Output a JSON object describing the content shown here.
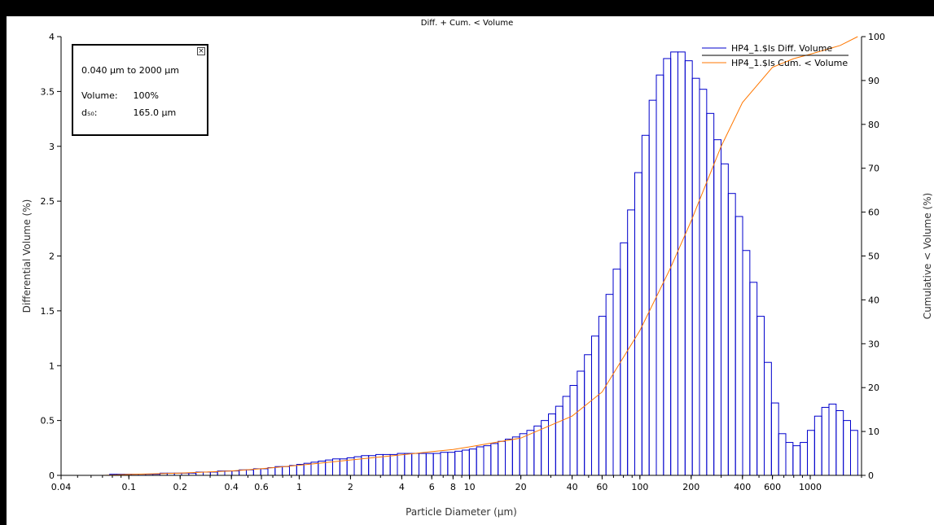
{
  "chart_data": {
    "type": "bar",
    "title": "Diff. + Cum. < Volume",
    "xlabel": "Particle Diameter (µm)",
    "ylabel": "Differential Volume (%)",
    "y2label": "Cumulative < Volume (%)",
    "xscale": "log",
    "xlim": [
      0.04,
      2000
    ],
    "ylim": [
      0,
      4
    ],
    "y2lim": [
      0,
      100
    ],
    "x_ticks": [
      "0.04",
      "0.1",
      "0.2",
      "0.4",
      "0.6",
      "1",
      "2",
      "4",
      "6",
      "8",
      "10",
      "20",
      "40",
      "60",
      "100",
      "200",
      "400",
      "600",
      "1000"
    ],
    "x_tick_values": [
      0.04,
      0.1,
      0.2,
      0.4,
      0.6,
      1,
      2,
      4,
      6,
      8,
      10,
      20,
      40,
      60,
      100,
      200,
      400,
      600,
      1000
    ],
    "y_ticks": [
      "0",
      "0.5",
      "1",
      "1.5",
      "2",
      "2.5",
      "3",
      "3.5",
      "4"
    ],
    "y2_ticks": [
      "0",
      "10",
      "20",
      "30",
      "40",
      "50",
      "60",
      "70",
      "80",
      "90",
      "100"
    ],
    "legend_position": "top-right",
    "series": [
      {
        "name": "HP4_1.$ls Diff. Volume",
        "color": "#0000cc",
        "kind": "bar",
        "values": [
          0,
          0.01,
          0.01,
          0.01,
          0.01,
          0.01,
          0.01,
          0.01,
          0.02,
          0.02,
          0.02,
          0.02,
          0.02,
          0.03,
          0.03,
          0.03,
          0.04,
          0.04,
          0.04,
          0.05,
          0.05,
          0.06,
          0.06,
          0.07,
          0.08,
          0.08,
          0.09,
          0.1,
          0.11,
          0.12,
          0.13,
          0.14,
          0.15,
          0.15,
          0.16,
          0.17,
          0.18,
          0.18,
          0.19,
          0.19,
          0.19,
          0.2,
          0.2,
          0.2,
          0.2,
          0.2,
          0.2,
          0.21,
          0.21,
          0.22,
          0.23,
          0.24,
          0.26,
          0.27,
          0.29,
          0.31,
          0.33,
          0.35,
          0.38,
          0.41,
          0.45,
          0.5,
          0.56,
          0.63,
          0.72,
          0.82,
          0.95,
          1.1,
          1.27,
          1.45,
          1.65,
          1.88,
          2.12,
          2.42,
          2.76,
          3.1,
          3.42,
          3.65,
          3.8,
          3.86,
          3.86,
          3.78,
          3.62,
          3.52,
          3.3,
          3.06,
          2.84,
          2.57,
          2.36,
          2.05,
          1.76,
          1.45,
          1.03,
          0.66,
          0.38,
          0.3,
          0.27,
          0.3,
          0.41,
          0.54,
          0.62,
          0.65,
          0.59,
          0.5,
          0.41
        ],
        "bins_start": 0.07,
        "bins_end": 1900
      },
      {
        "name": "HP4_1.$ls Cum. < Volume",
        "color": "#ff7700",
        "kind": "line",
        "x": [
          0.07,
          0.1,
          0.2,
          0.4,
          0.6,
          1,
          2,
          4,
          6,
          8,
          10,
          20,
          40,
          60,
          100,
          150,
          200,
          300,
          400,
          600,
          800,
          1000,
          1500,
          1900
        ],
        "y": [
          0,
          0.2,
          0.5,
          1,
          1.5,
          2.3,
          3.5,
          4.7,
          5.4,
          5.9,
          6.5,
          8.5,
          13.5,
          19,
          33,
          47,
          58,
          75,
          85,
          93,
          95,
          96,
          98,
          100
        ]
      }
    ]
  },
  "infobox": {
    "range": "0.040 µm to 2000 µm",
    "volume_label": "Volume:",
    "volume_value": "100%",
    "d50_label": "d₅₀:",
    "d50_value": "165.0 µm",
    "close_glyph": "×"
  }
}
